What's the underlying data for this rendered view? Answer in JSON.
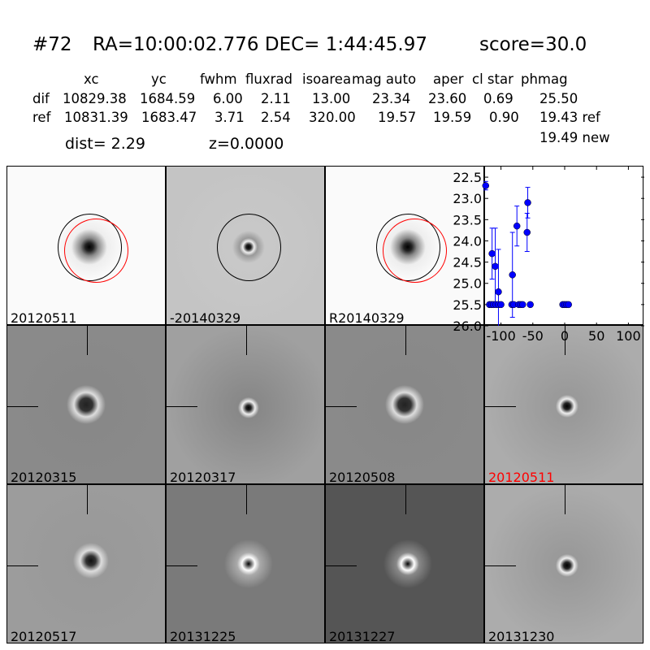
{
  "header": {
    "id": "#72",
    "coords": "RA=10:00:02.776 DEC= 1:44:45.97",
    "score": "score=30.0"
  },
  "table": {
    "columns": [
      "xc",
      "yc",
      "fwhm",
      "fluxrad",
      "isoarea",
      "mag auto",
      "aper",
      "cl star",
      "phmag"
    ],
    "rows": [
      {
        "label": "dif",
        "values": [
          "10829.38",
          "1684.59",
          "6.00",
          "2.11",
          "13.00",
          "23.34",
          "23.60",
          "0.69",
          "25.50"
        ]
      },
      {
        "label": "ref",
        "values": [
          "10831.39",
          "1683.47",
          "3.71",
          "2.54",
          "320.00",
          "19.57",
          "19.59",
          "0.90",
          "19.43 ref"
        ]
      }
    ],
    "extra_phmag": "19.49 new",
    "dist": "dist=  2.29",
    "z": "z=0.0000"
  },
  "stamps": [
    {
      "label": "20120511",
      "style": "ref"
    },
    {
      "label": "-20140329",
      "style": "dif"
    },
    {
      "label": "R20140329",
      "style": "ref"
    },
    {
      "label": "20120315",
      "style": "noisy"
    },
    {
      "label": "20120317",
      "style": "smooth"
    },
    {
      "label": "20120508",
      "style": "noisy"
    },
    {
      "label": "20120511",
      "style": "smooth2",
      "color": "#ff0000"
    },
    {
      "label": "20120517",
      "style": "noisy2"
    },
    {
      "label": "20131225",
      "style": "dark"
    },
    {
      "label": "20131227",
      "style": "darker"
    },
    {
      "label": "20131230",
      "style": "smooth2"
    }
  ],
  "chart_data": {
    "type": "scatter",
    "error_bars": true,
    "marker_color": "#0000ff",
    "xlim": [
      -125,
      125
    ],
    "ylim": [
      26.0,
      22.25
    ],
    "y_inverted": true,
    "xticks": [
      -100,
      -50,
      0,
      50,
      100
    ],
    "yticks": [
      22.5,
      23.0,
      23.5,
      24.0,
      24.5,
      25.0,
      25.5,
      26.0
    ],
    "points": [
      {
        "x": -124,
        "y": 22.7,
        "err": 0.1
      },
      {
        "x": -114,
        "y": 24.3,
        "err": 0.6
      },
      {
        "x": -109,
        "y": 24.6,
        "err": 0.9
      },
      {
        "x": -104,
        "y": 25.2,
        "err": 1.0
      },
      {
        "x": -82,
        "y": 24.8,
        "err": 1.0
      },
      {
        "x": -75,
        "y": 23.65,
        "err": 0.47
      },
      {
        "x": -58,
        "y": 23.1,
        "err": 0.36
      },
      {
        "x": -59,
        "y": 23.8,
        "err": 0.45
      },
      {
        "x": -118,
        "y": 25.5,
        "err": 0.05
      },
      {
        "x": -115,
        "y": 25.5,
        "err": 0.05
      },
      {
        "x": -112,
        "y": 25.5,
        "err": 0.05
      },
      {
        "x": -108,
        "y": 25.5,
        "err": 0.05
      },
      {
        "x": -104,
        "y": 25.5,
        "err": 0.05
      },
      {
        "x": -100,
        "y": 25.5,
        "err": 0.05
      },
      {
        "x": -83,
        "y": 25.5,
        "err": 0.05
      },
      {
        "x": -80,
        "y": 25.5,
        "err": 0.05
      },
      {
        "x": -72,
        "y": 25.5,
        "err": 0.05
      },
      {
        "x": -69,
        "y": 25.5,
        "err": 0.05
      },
      {
        "x": -66,
        "y": 25.5,
        "err": 0.05
      },
      {
        "x": -54,
        "y": 25.5,
        "err": 0.05
      },
      {
        "x": -3,
        "y": 25.5,
        "err": 0.05
      },
      {
        "x": 0,
        "y": 25.5,
        "err": 0.05
      },
      {
        "x": 3,
        "y": 25.5,
        "err": 0.05
      },
      {
        "x": 6,
        "y": 25.5,
        "err": 0.05
      }
    ]
  }
}
